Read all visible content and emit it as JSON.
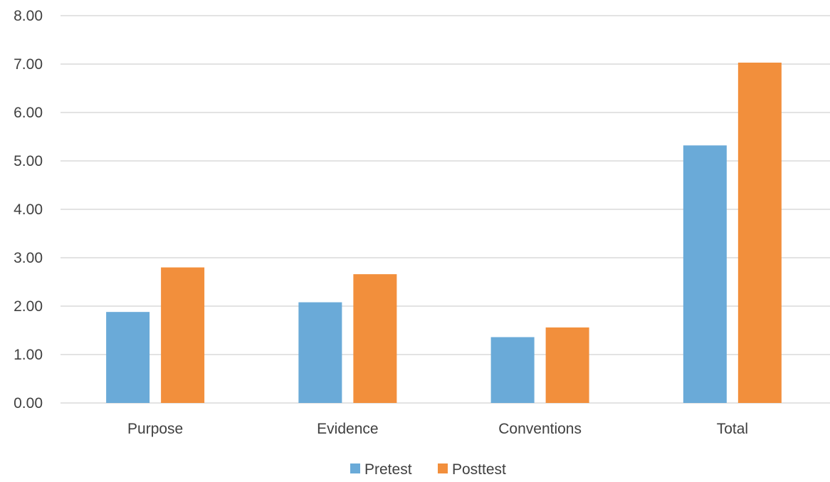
{
  "chart_data": {
    "type": "bar",
    "title": "",
    "xlabel": "",
    "ylabel": "",
    "categories": [
      "Purpose",
      "Evidence",
      "Conventions",
      "Total"
    ],
    "series": [
      {
        "name": "Pretest",
        "color": "#6aaad8",
        "values": [
          1.88,
          2.08,
          1.36,
          5.32
        ]
      },
      {
        "name": "Posttest",
        "color": "#f28f3c",
        "values": [
          2.8,
          2.66,
          1.56,
          7.03
        ]
      }
    ],
    "ylim": [
      0,
      8
    ],
    "yticks": [
      "0.00",
      "1.00",
      "2.00",
      "3.00",
      "4.00",
      "5.00",
      "6.00",
      "7.00",
      "8.00"
    ],
    "grid": true,
    "gridColor": "#e3e3e3",
    "legend": "bottom"
  }
}
